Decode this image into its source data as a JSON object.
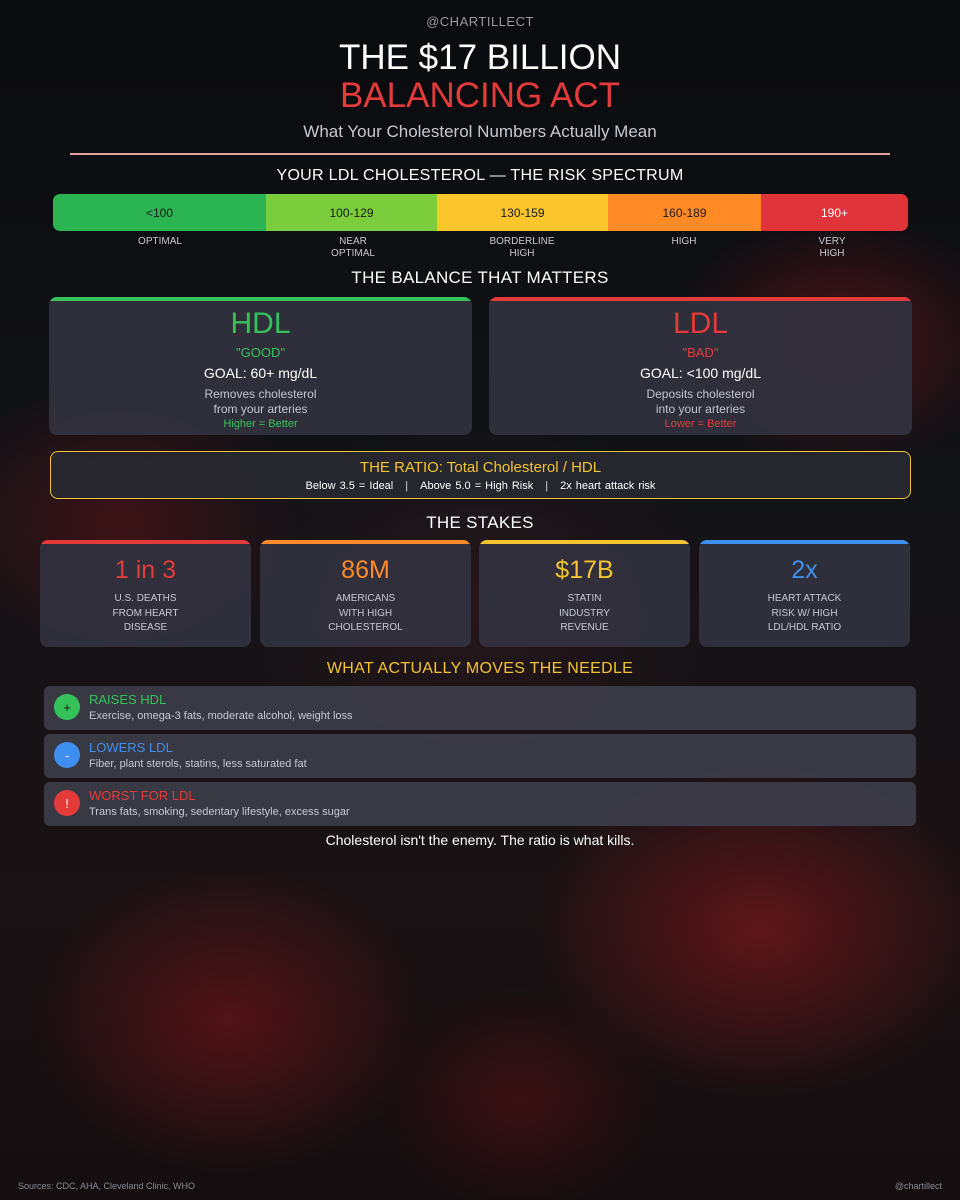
{
  "handle_top": "@CHARTILLECT",
  "title_line1": "THE $17 BILLION",
  "title_line2": "BALANCING ACT",
  "subtitle": "What Your Cholesterol Numbers Actually Mean",
  "colors": {
    "green": "#35c25a",
    "red": "#e53a3a",
    "yellow": "#f4c430",
    "orange": "#ff8a2a",
    "blue": "#3f8ff0"
  },
  "spectrum": {
    "title": "YOUR LDL CHOLESTEROL — THE RISK SPECTRUM",
    "segments": [
      {
        "range": "<100",
        "label": "OPTIMAL",
        "color": "#2bb552"
      },
      {
        "range": "100-129",
        "label": "NEAR OPTIMAL",
        "color": "#7ccd3c"
      },
      {
        "range": "130-159",
        "label": "BORDERLINE HIGH",
        "color": "#fac62c"
      },
      {
        "range": "160-189",
        "label": "HIGH",
        "color": "#ff8a26"
      },
      {
        "range": "190+",
        "label": "VERY HIGH",
        "color": "#e0343a"
      }
    ]
  },
  "balance": {
    "title": "THE BALANCE THAT MATTERS",
    "hdl": {
      "name": "HDL",
      "quote": "\"GOOD\"",
      "goal": "GOAL: 60+ mg/dL",
      "desc1": "Removes cholesterol",
      "desc2": "from your arteries",
      "note": "Higher = Better"
    },
    "ldl": {
      "name": "LDL",
      "quote": "\"BAD\"",
      "goal": "GOAL: <100 mg/dL",
      "desc1": "Deposits cholesterol",
      "desc2": "into your arteries",
      "note": "Lower = Better"
    }
  },
  "ratio": {
    "title": "THE RATIO: Total Cholesterol / HDL",
    "item1": "Below 3.5 = Ideal",
    "item2": "Above 5.0 = High Risk",
    "item3": "2x heart attack risk",
    "separator": "|"
  },
  "stakes": {
    "title": "THE STAKES",
    "cards": [
      {
        "value": "1 in 3",
        "l1": "U.S. DEATHS",
        "l2": "FROM HEART",
        "l3": "DISEASE"
      },
      {
        "value": "86M",
        "l1": "AMERICANS",
        "l2": "WITH HIGH",
        "l3": "CHOLESTEROL"
      },
      {
        "value": "$17B",
        "l1": "STATIN",
        "l2": "INDUSTRY",
        "l3": "REVENUE"
      },
      {
        "value": "2x",
        "l1": "HEART ATTACK",
        "l2": "RISK W/ HIGH",
        "l3": "LDL/HDL RATIO"
      }
    ]
  },
  "needle": {
    "title": "WHAT ACTUALLY MOVES THE NEEDLE",
    "items": [
      {
        "symbol": "+",
        "title": "RAISES HDL",
        "desc": "Exercise, omega-3 fats, moderate alcohol, weight loss"
      },
      {
        "symbol": "-",
        "title": "LOWERS LDL",
        "desc": "Fiber, plant sterols, statins, less saturated fat"
      },
      {
        "symbol": "!",
        "title": "WORST FOR LDL",
        "desc": "Trans fats, smoking, sedentary lifestyle, excess sugar"
      }
    ]
  },
  "closing": "Cholesterol isn't the enemy. The ratio is what kills.",
  "sources": "Sources: CDC, AHA, Cleveland Clinic, WHO",
  "handle_bottom": "@chartillect"
}
